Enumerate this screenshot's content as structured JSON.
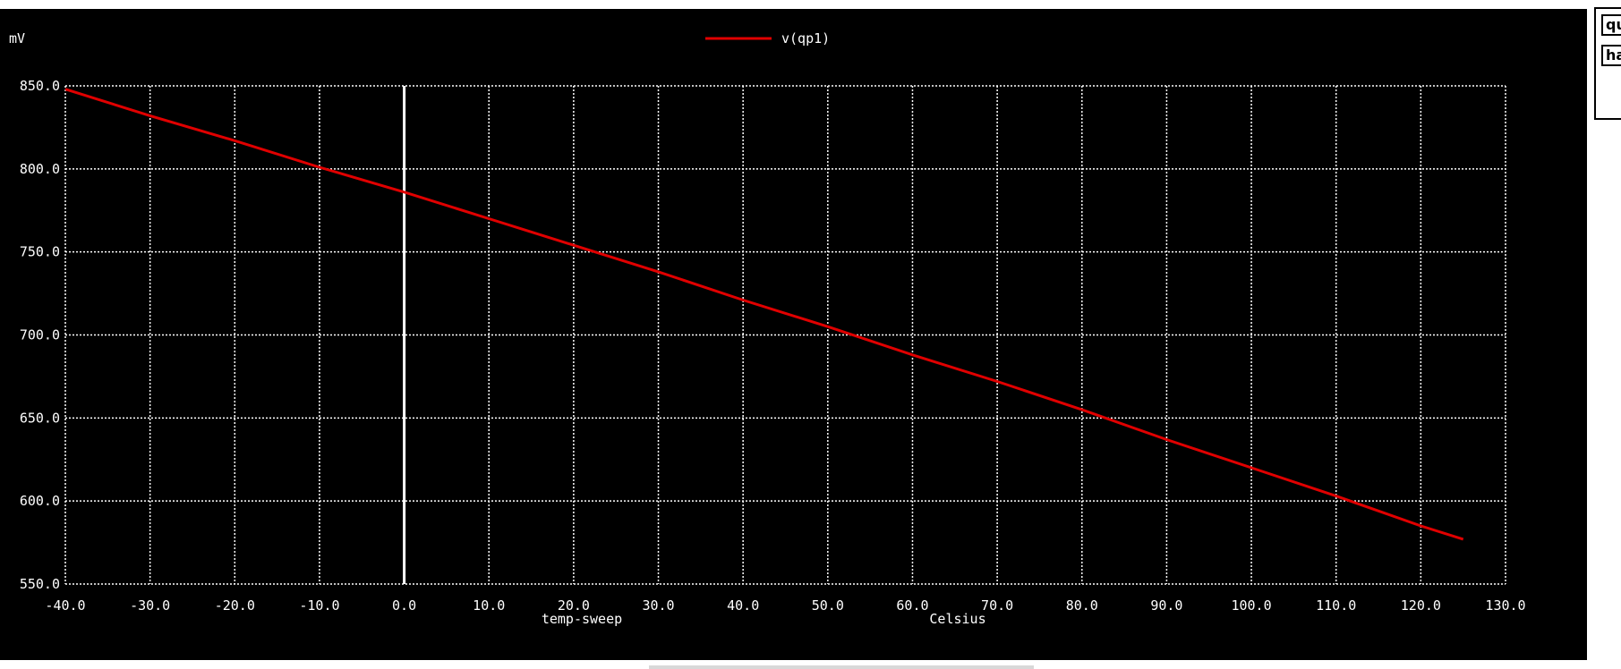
{
  "side_panel": {
    "buttons": [
      "qu",
      "ha"
    ]
  },
  "chart_data": {
    "type": "line",
    "ylabel_unit": "mV",
    "xlabel_left": "temp-sweep",
    "xlabel_right": "Celsius",
    "xlim": [
      -40,
      130
    ],
    "ylim": [
      550,
      850
    ],
    "x_ticks": [
      "-40.0",
      "-30.0",
      "-20.0",
      "-10.0",
      "0.0",
      "10.0",
      "20.0",
      "30.0",
      "40.0",
      "50.0",
      "60.0",
      "70.0",
      "80.0",
      "90.0",
      "100.0",
      "110.0",
      "120.0",
      "130.0"
    ],
    "y_ticks": [
      "850.0",
      "800.0",
      "750.0",
      "700.0",
      "650.0",
      "600.0",
      "550.0"
    ],
    "grid": true,
    "legend_position": "top-center",
    "cursor_x": 0,
    "series": [
      {
        "name": "v(qp1)",
        "color": "#e00000",
        "x": [
          -40,
          -30,
          -20,
          -10,
          0,
          10,
          20,
          30,
          40,
          50,
          60,
          70,
          80,
          90,
          100,
          110,
          120,
          125
        ],
        "y": [
          848,
          832,
          817,
          801,
          786,
          770,
          754,
          738,
          721,
          705,
          688,
          672,
          655,
          637,
          620,
          603,
          585,
          577
        ]
      }
    ]
  }
}
